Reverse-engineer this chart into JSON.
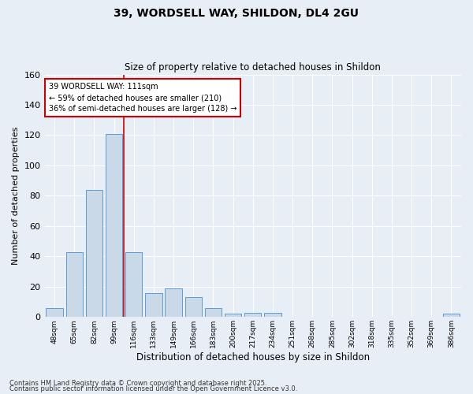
{
  "title": "39, WORDSELL WAY, SHILDON, DL4 2GU",
  "subtitle": "Size of property relative to detached houses in Shildon",
  "xlabel": "Distribution of detached houses by size in Shildon",
  "ylabel": "Number of detached properties",
  "categories": [
    "48sqm",
    "65sqm",
    "82sqm",
    "99sqm",
    "116sqm",
    "133sqm",
    "149sqm",
    "166sqm",
    "183sqm",
    "200sqm",
    "217sqm",
    "234sqm",
    "251sqm",
    "268sqm",
    "285sqm",
    "302sqm",
    "318sqm",
    "335sqm",
    "352sqm",
    "369sqm",
    "386sqm"
  ],
  "values": [
    6,
    43,
    84,
    121,
    43,
    16,
    19,
    13,
    6,
    2,
    3,
    3,
    0,
    0,
    0,
    0,
    0,
    0,
    0,
    0,
    2
  ],
  "bar_color": "#c9d9e8",
  "bar_edge_color": "#5b9bd5",
  "background_color": "#e8eef5",
  "grid_color": "#ffffff",
  "red_line_index": 4,
  "annotation_text": "39 WORDSELL WAY: 111sqm\n← 59% of detached houses are smaller (210)\n36% of semi-detached houses are larger (128) →",
  "annotation_box_color": "#ffffff",
  "annotation_box_edge": "#cc0000",
  "footnote1": "Contains HM Land Registry data © Crown copyright and database right 2025.",
  "footnote2": "Contains public sector information licensed under the Open Government Licence v3.0.",
  "ylim": [
    0,
    160
  ],
  "yticks": [
    0,
    20,
    40,
    60,
    80,
    100,
    120,
    140,
    160
  ]
}
